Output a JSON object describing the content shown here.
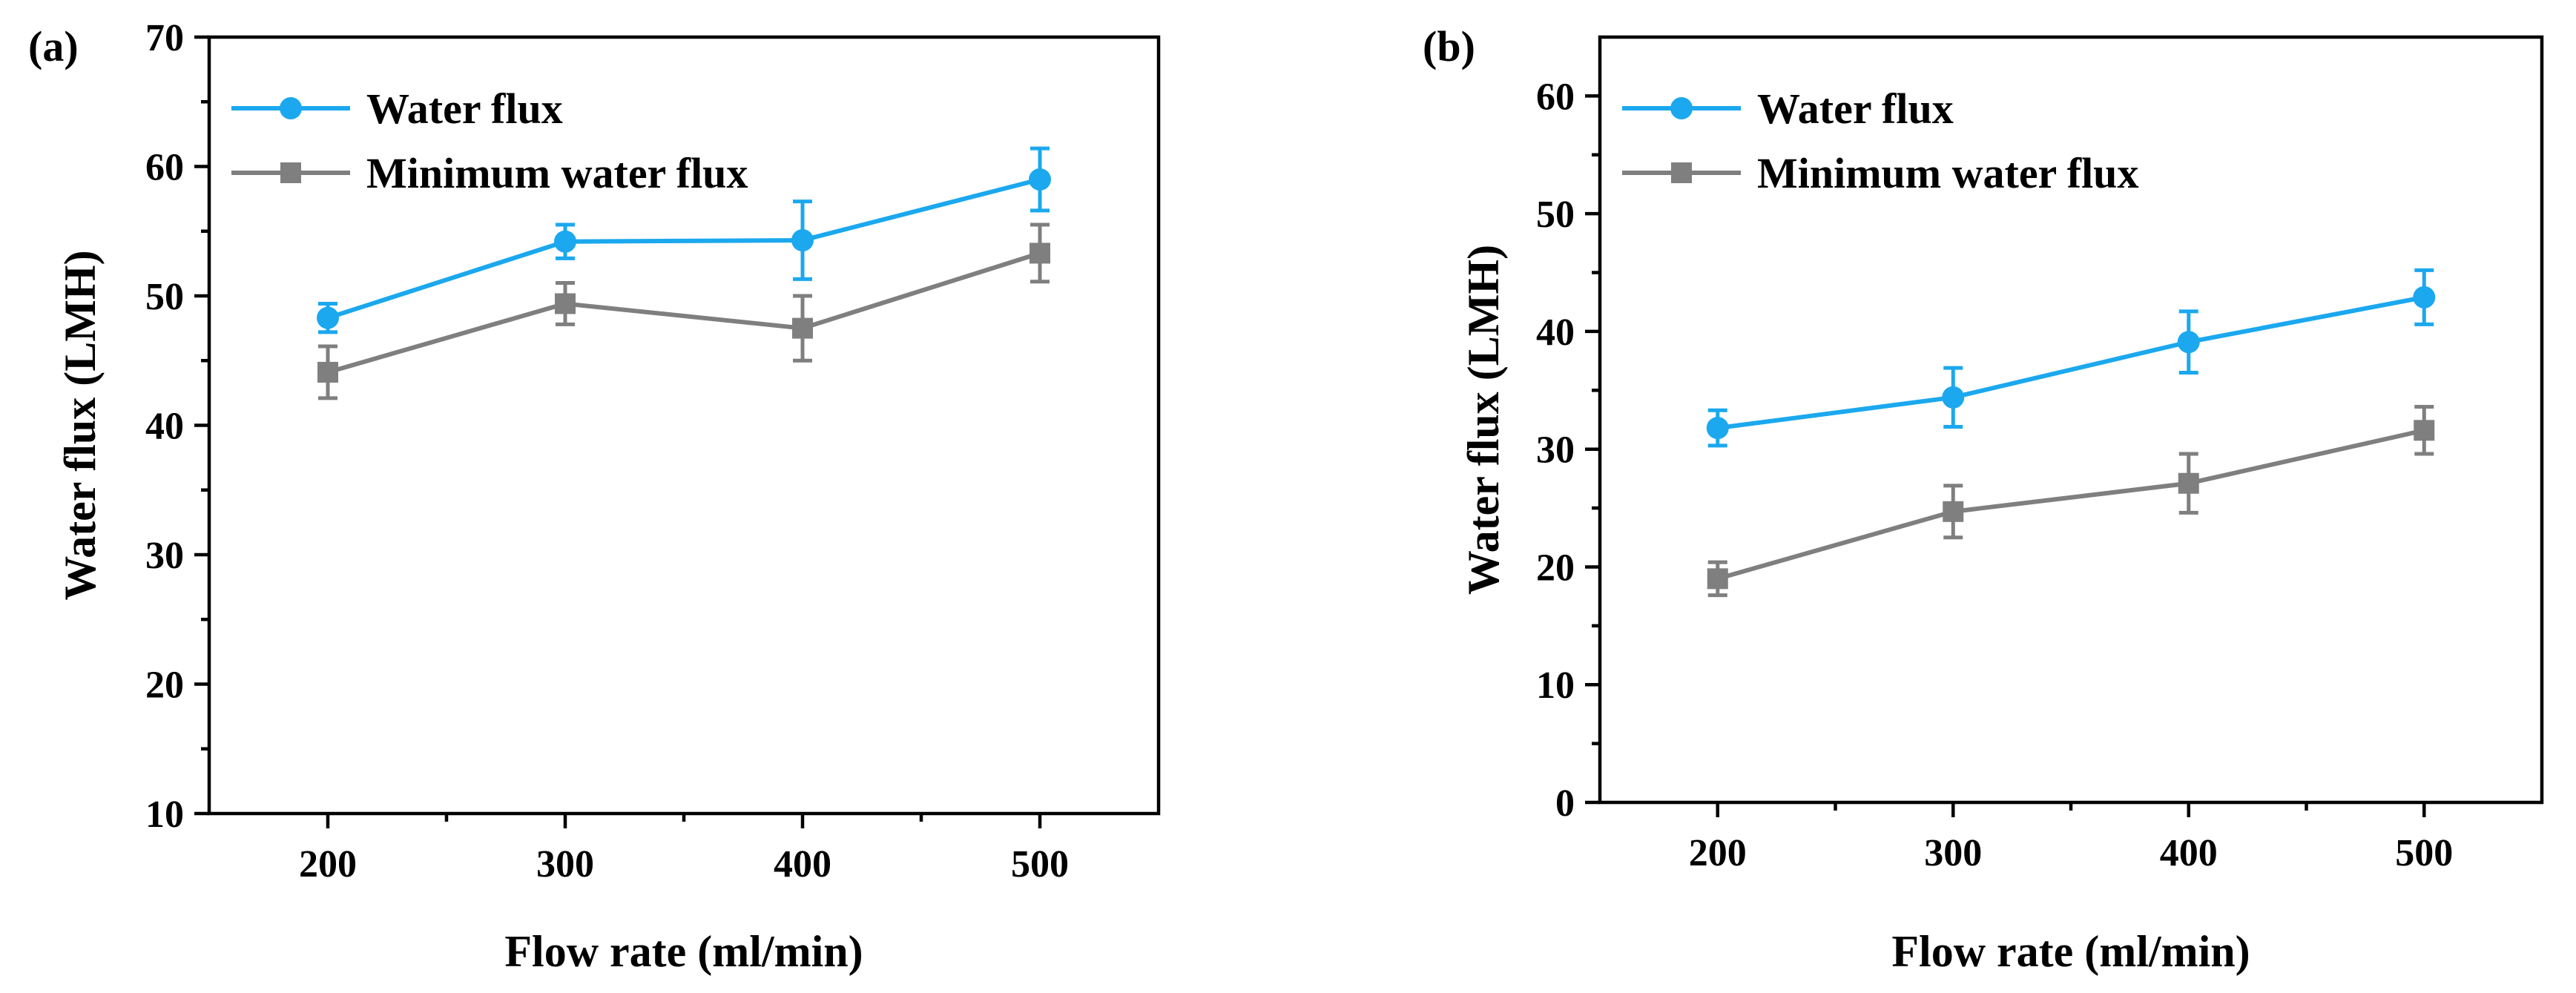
{
  "chart_data": [
    {
      "type": "line",
      "panel_label": "(a)",
      "xlabel": "Flow rate (ml/min)",
      "ylabel": "Water flux (LMH)",
      "x": [
        200,
        300,
        400,
        500
      ],
      "xticks": [
        200,
        300,
        400,
        500
      ],
      "xlim": [
        150,
        550
      ],
      "ylim": [
        10,
        70
      ],
      "yticks": [
        10,
        20,
        30,
        40,
        50,
        60,
        70
      ],
      "grid": false,
      "legend": "top-left",
      "series": [
        {
          "name": "Water flux",
          "marker": "circle",
          "color": "#1BA8EE",
          "values": [
            48.3,
            54.2,
            54.3,
            59.0
          ],
          "errors": [
            1.1,
            1.3,
            3.0,
            2.4
          ]
        },
        {
          "name": "Minimum water flux",
          "marker": "square",
          "color": "#7F7F7F",
          "values": [
            44.1,
            49.4,
            47.5,
            53.3
          ],
          "errors": [
            2.0,
            1.6,
            2.5,
            2.2
          ]
        }
      ]
    },
    {
      "type": "line",
      "panel_label": "(b)",
      "xlabel": "Flow rate (ml/min)",
      "ylabel": "Water flux (LMH)",
      "x": [
        200,
        300,
        400,
        500
      ],
      "xticks": [
        200,
        300,
        400,
        500
      ],
      "xlim": [
        150,
        550
      ],
      "ylim": [
        0,
        65
      ],
      "yticks": [
        0,
        10,
        20,
        30,
        40,
        50,
        60
      ],
      "grid": false,
      "legend": "top-left",
      "series": [
        {
          "name": "Water flux",
          "marker": "circle",
          "color": "#1BA8EE",
          "values": [
            31.8,
            34.4,
            39.1,
            42.9
          ],
          "errors": [
            1.5,
            2.5,
            2.6,
            2.3
          ]
        },
        {
          "name": "Minimum water flux",
          "marker": "square",
          "color": "#7F7F7F",
          "values": [
            19.0,
            24.7,
            27.1,
            31.6
          ],
          "errors": [
            1.4,
            2.2,
            2.5,
            2.0
          ]
        }
      ]
    }
  ]
}
